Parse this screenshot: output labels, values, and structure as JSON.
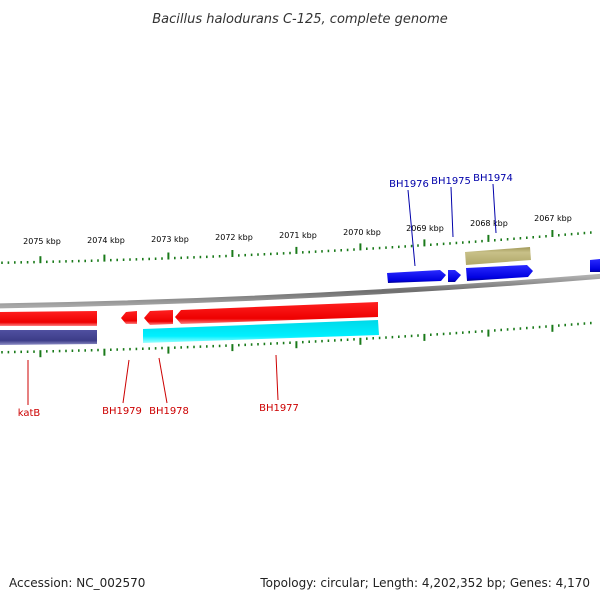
{
  "title": "Bacillus halodurans C-125, complete genome",
  "footer": {
    "accession": "Accession: NC_002570",
    "summary": "Topology: circular; Length: 4,202,352 bp; Genes: 4,170"
  },
  "colors": {
    "backbone": "#808080",
    "tick": "#1a7a1a",
    "forward_cds": "#0000ee",
    "forward_other": "#b8b070",
    "reverse_cds": "#ee0000",
    "reverse_other": "#00e5ee",
    "reverse_dark": "#3c3c88",
    "forward_label": "#0000aa",
    "reverse_label": "#cc0000"
  },
  "scale_labels": [
    "2075 kbp",
    "2074 kbp",
    "2073 kbp",
    "2072 kbp",
    "2071 kbp",
    "2070 kbp",
    "2069 kbp",
    "2068 kbp",
    "2067 kbp"
  ],
  "forward_labels": [
    "BH1976",
    "BH1975",
    "BH1974"
  ],
  "reverse_labels": [
    "katB",
    "BH1979",
    "BH1978",
    "BH1977"
  ]
}
